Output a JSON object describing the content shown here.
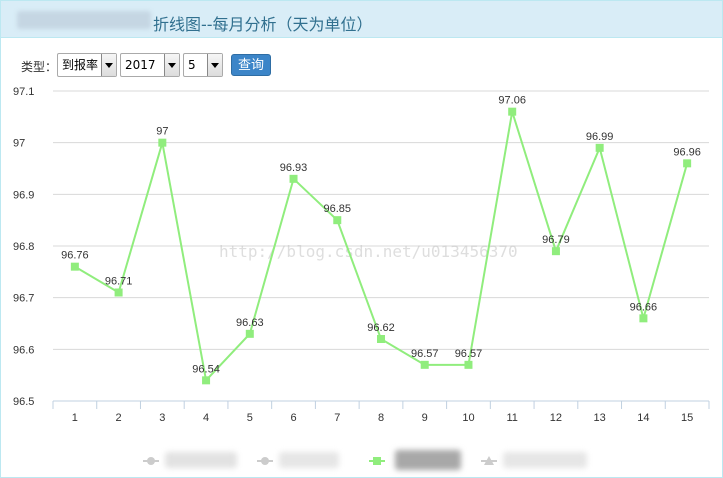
{
  "header": {
    "title": "折线图--每月分析（天为单位）"
  },
  "filters": {
    "type_label": "类型：",
    "type_value": "到报率",
    "year_value": "2017",
    "month_value": "5",
    "query_label": "查询"
  },
  "watermark": "http://blog.csdn.net/u013456370",
  "legend": {
    "active_color": "#90ed7d",
    "inactive_color": "#cccccc"
  },
  "chart_data": {
    "type": "line",
    "categories": [
      "1",
      "2",
      "3",
      "4",
      "5",
      "6",
      "7",
      "8",
      "9",
      "10",
      "11",
      "12",
      "13",
      "14",
      "15"
    ],
    "series": [
      {
        "values": [
          96.76,
          96.71,
          97,
          96.54,
          96.63,
          96.93,
          96.85,
          96.62,
          96.57,
          96.57,
          97.06,
          96.79,
          96.99,
          96.66,
          96.96
        ],
        "color": "#90ed7d"
      }
    ],
    "ylim": [
      96.5,
      97.1
    ],
    "yticks": [
      96.5,
      96.6,
      96.7,
      96.8,
      96.9,
      97,
      97.1
    ],
    "grid": true,
    "data_labels": true,
    "legend_position": "bottom"
  }
}
